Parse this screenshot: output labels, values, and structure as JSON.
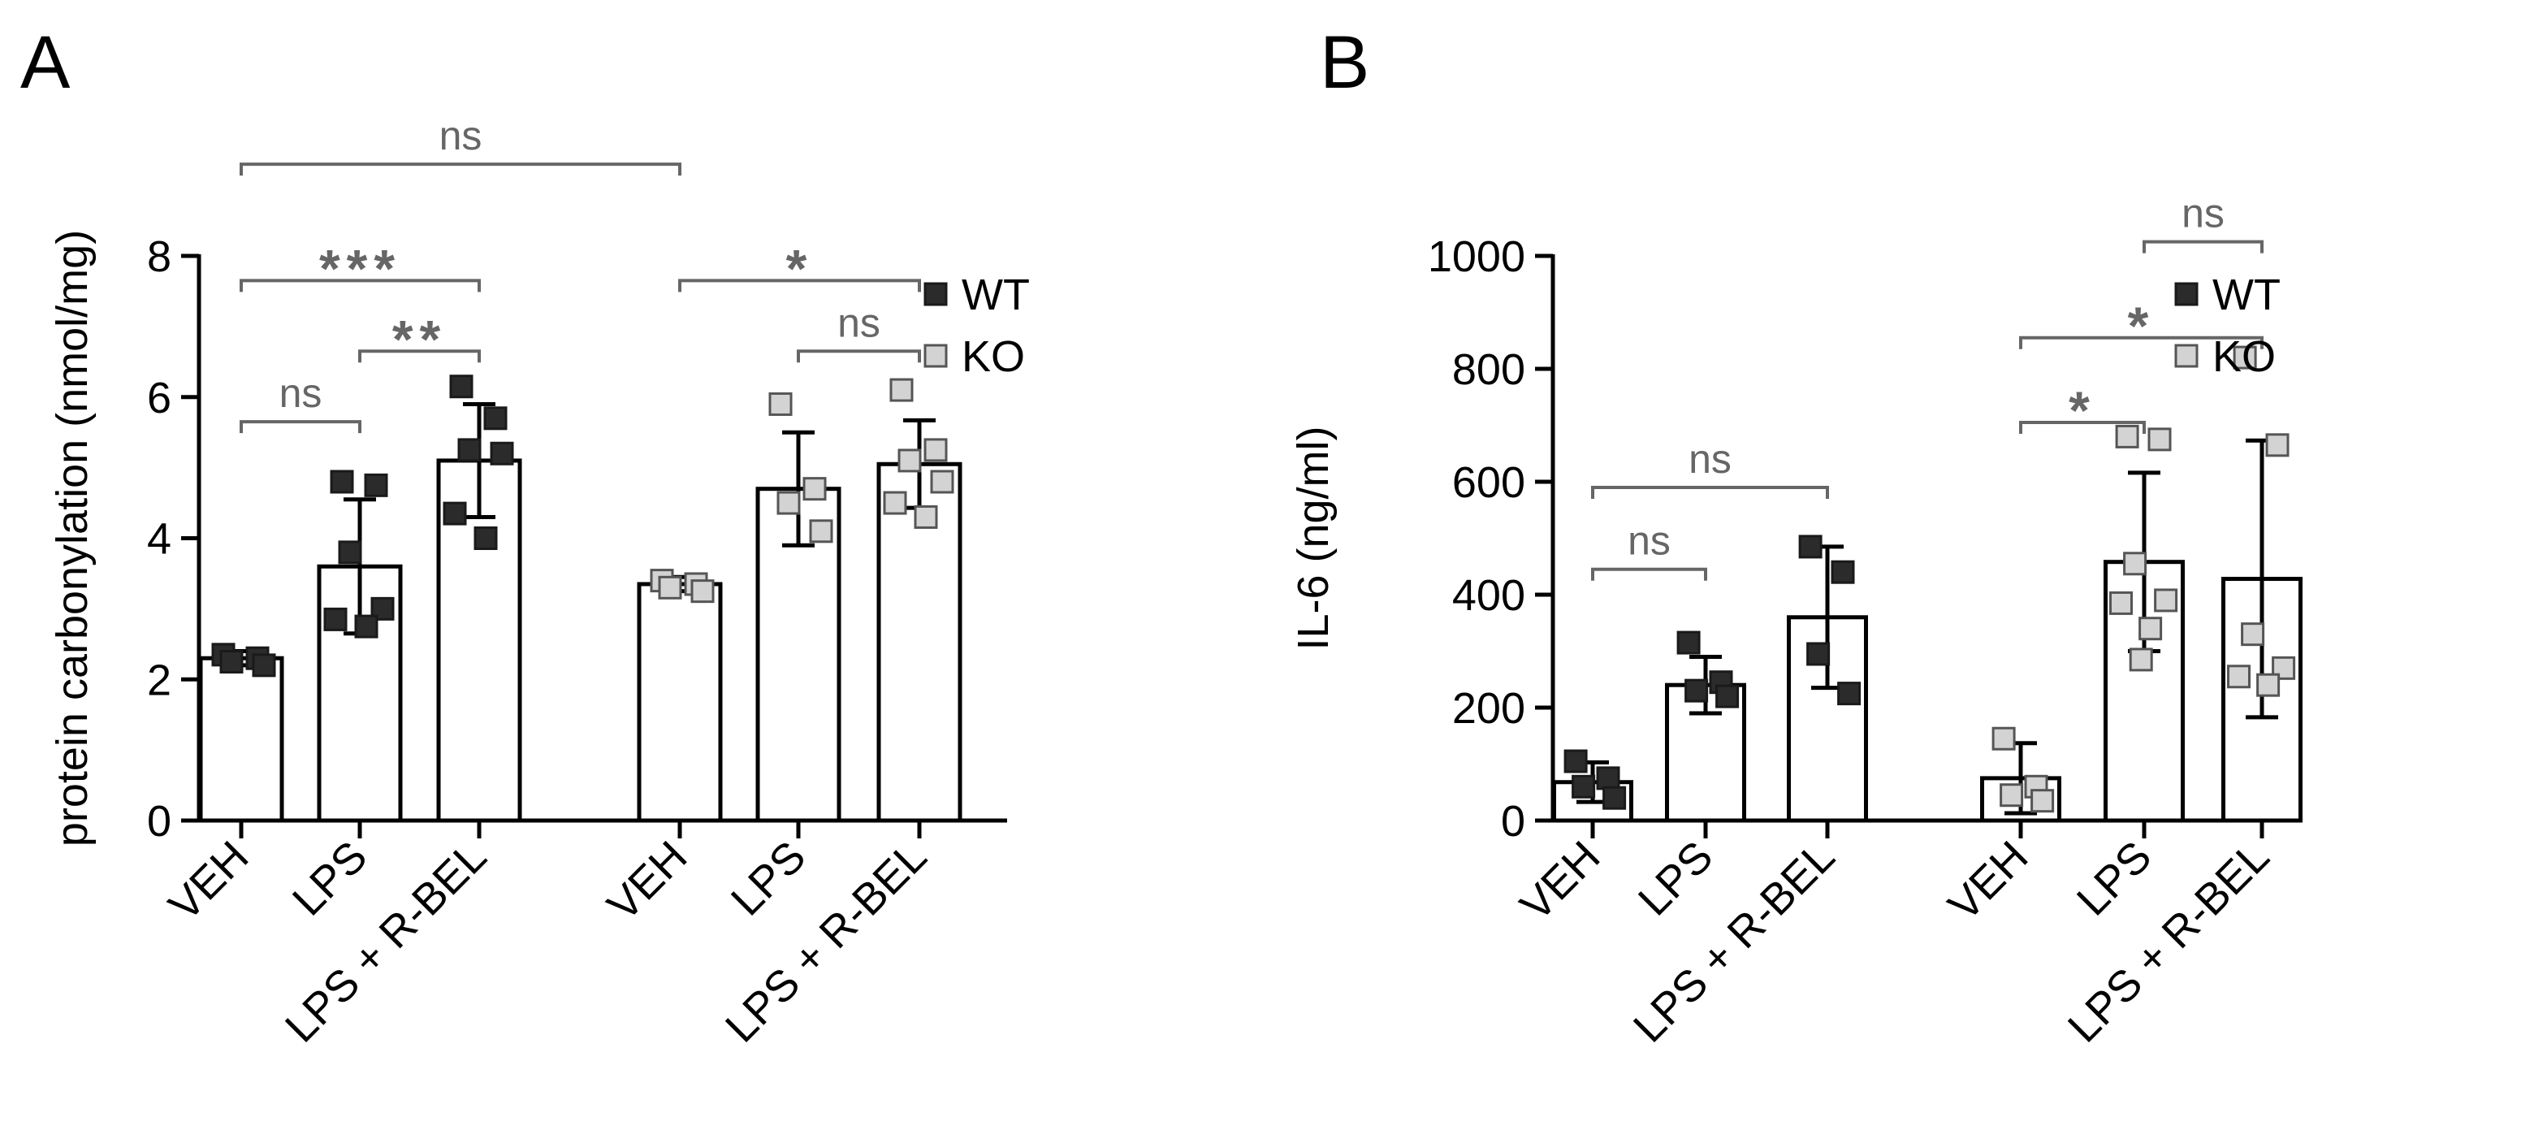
{
  "colors": {
    "wt": "#2b2b2b",
    "ko": "#d3d3d3",
    "axis": "#000000",
    "bracket": "#666666"
  },
  "chart_data": [
    {
      "panel_label": "A",
      "type": "bar",
      "ylabel": "protein carbonylation (nmol/mg)",
      "ylim": [
        0,
        8
      ],
      "yticks": [
        0,
        2,
        4,
        6,
        8
      ],
      "legend": [
        {
          "label": "WT",
          "color": "#2b2b2b"
        },
        {
          "label": "KO",
          "color": "#d3d3d3"
        }
      ],
      "legend_position": "top-right",
      "bars": [
        {
          "label": "VEH",
          "group": "WT",
          "mean": 2.3,
          "sd": 0.1,
          "points": [
            2.35,
            2.3,
            2.25,
            2.2
          ]
        },
        {
          "label": "LPS",
          "group": "WT",
          "mean": 3.6,
          "sd": 0.95,
          "points": [
            4.8,
            4.75,
            3.8,
            3.0,
            2.85,
            2.75
          ]
        },
        {
          "label": "LPS + R-BEL",
          "group": "WT",
          "mean": 5.1,
          "sd": 0.8,
          "points": [
            6.15,
            5.7,
            5.25,
            5.2,
            4.35,
            4.0
          ]
        },
        {
          "label": "VEH",
          "group": "KO",
          "mean": 3.35,
          "sd": 0.1,
          "points": [
            3.4,
            3.35,
            3.3,
            3.25
          ]
        },
        {
          "label": "LPS",
          "group": "KO",
          "mean": 4.7,
          "sd": 0.8,
          "points": [
            5.9,
            4.7,
            4.5,
            4.1
          ]
        },
        {
          "label": "LPS + R-BEL",
          "group": "KO",
          "mean": 5.05,
          "sd": 0.62,
          "points": [
            6.1,
            5.25,
            5.1,
            4.8,
            4.5,
            4.3
          ]
        }
      ],
      "brackets": [
        {
          "from": 0,
          "to": 3,
          "level": 9.3,
          "label": "ns"
        },
        {
          "from": 0,
          "to": 2,
          "level": 7.65,
          "label": "***"
        },
        {
          "from": 1,
          "to": 2,
          "level": 6.65,
          "label": "**"
        },
        {
          "from": 0,
          "to": 1,
          "level": 5.65,
          "label": "ns"
        },
        {
          "from": 3,
          "to": 5,
          "level": 7.65,
          "label": "*"
        },
        {
          "from": 4,
          "to": 5,
          "level": 6.65,
          "label": "ns"
        }
      ]
    },
    {
      "panel_label": "B",
      "type": "bar",
      "ylabel": "IL-6 (ng/ml)",
      "ylim": [
        0,
        1000
      ],
      "yticks": [
        0,
        200,
        400,
        600,
        800,
        1000
      ],
      "legend": [
        {
          "label": "WT",
          "color": "#2b2b2b"
        },
        {
          "label": "KO",
          "color": "#d3d3d3"
        }
      ],
      "legend_position": "top-right",
      "bars": [
        {
          "label": "VEH",
          "group": "WT",
          "mean": 68,
          "sd": 35,
          "points": [
            105,
            75,
            60,
            40
          ]
        },
        {
          "label": "LPS",
          "group": "WT",
          "mean": 240,
          "sd": 50,
          "points": [
            315,
            245,
            230,
            220
          ]
        },
        {
          "label": "LPS + R-BEL",
          "group": "WT",
          "mean": 360,
          "sd": 125,
          "points": [
            485,
            440,
            295,
            225
          ]
        },
        {
          "label": "VEH",
          "group": "KO",
          "mean": 75,
          "sd": 62,
          "points": [
            145,
            60,
            45,
            35
          ]
        },
        {
          "label": "LPS",
          "group": "KO",
          "mean": 458,
          "sd": 158,
          "points": [
            680,
            675,
            455,
            390,
            385,
            340,
            285
          ]
        },
        {
          "label": "LPS + R-BEL",
          "group": "KO",
          "mean": 428,
          "sd": 245,
          "points": [
            820,
            665,
            330,
            270,
            255,
            240
          ]
        }
      ],
      "brackets": [
        {
          "from": 0,
          "to": 2,
          "level": 590,
          "label": "ns"
        },
        {
          "from": 0,
          "to": 1,
          "level": 445,
          "label": "ns"
        },
        {
          "from": 4,
          "to": 5,
          "level": 1025,
          "label": "ns"
        },
        {
          "from": 3,
          "to": 5,
          "level": 855,
          "label": "*"
        },
        {
          "from": 3,
          "to": 4,
          "level": 705,
          "label": "*"
        }
      ]
    }
  ]
}
